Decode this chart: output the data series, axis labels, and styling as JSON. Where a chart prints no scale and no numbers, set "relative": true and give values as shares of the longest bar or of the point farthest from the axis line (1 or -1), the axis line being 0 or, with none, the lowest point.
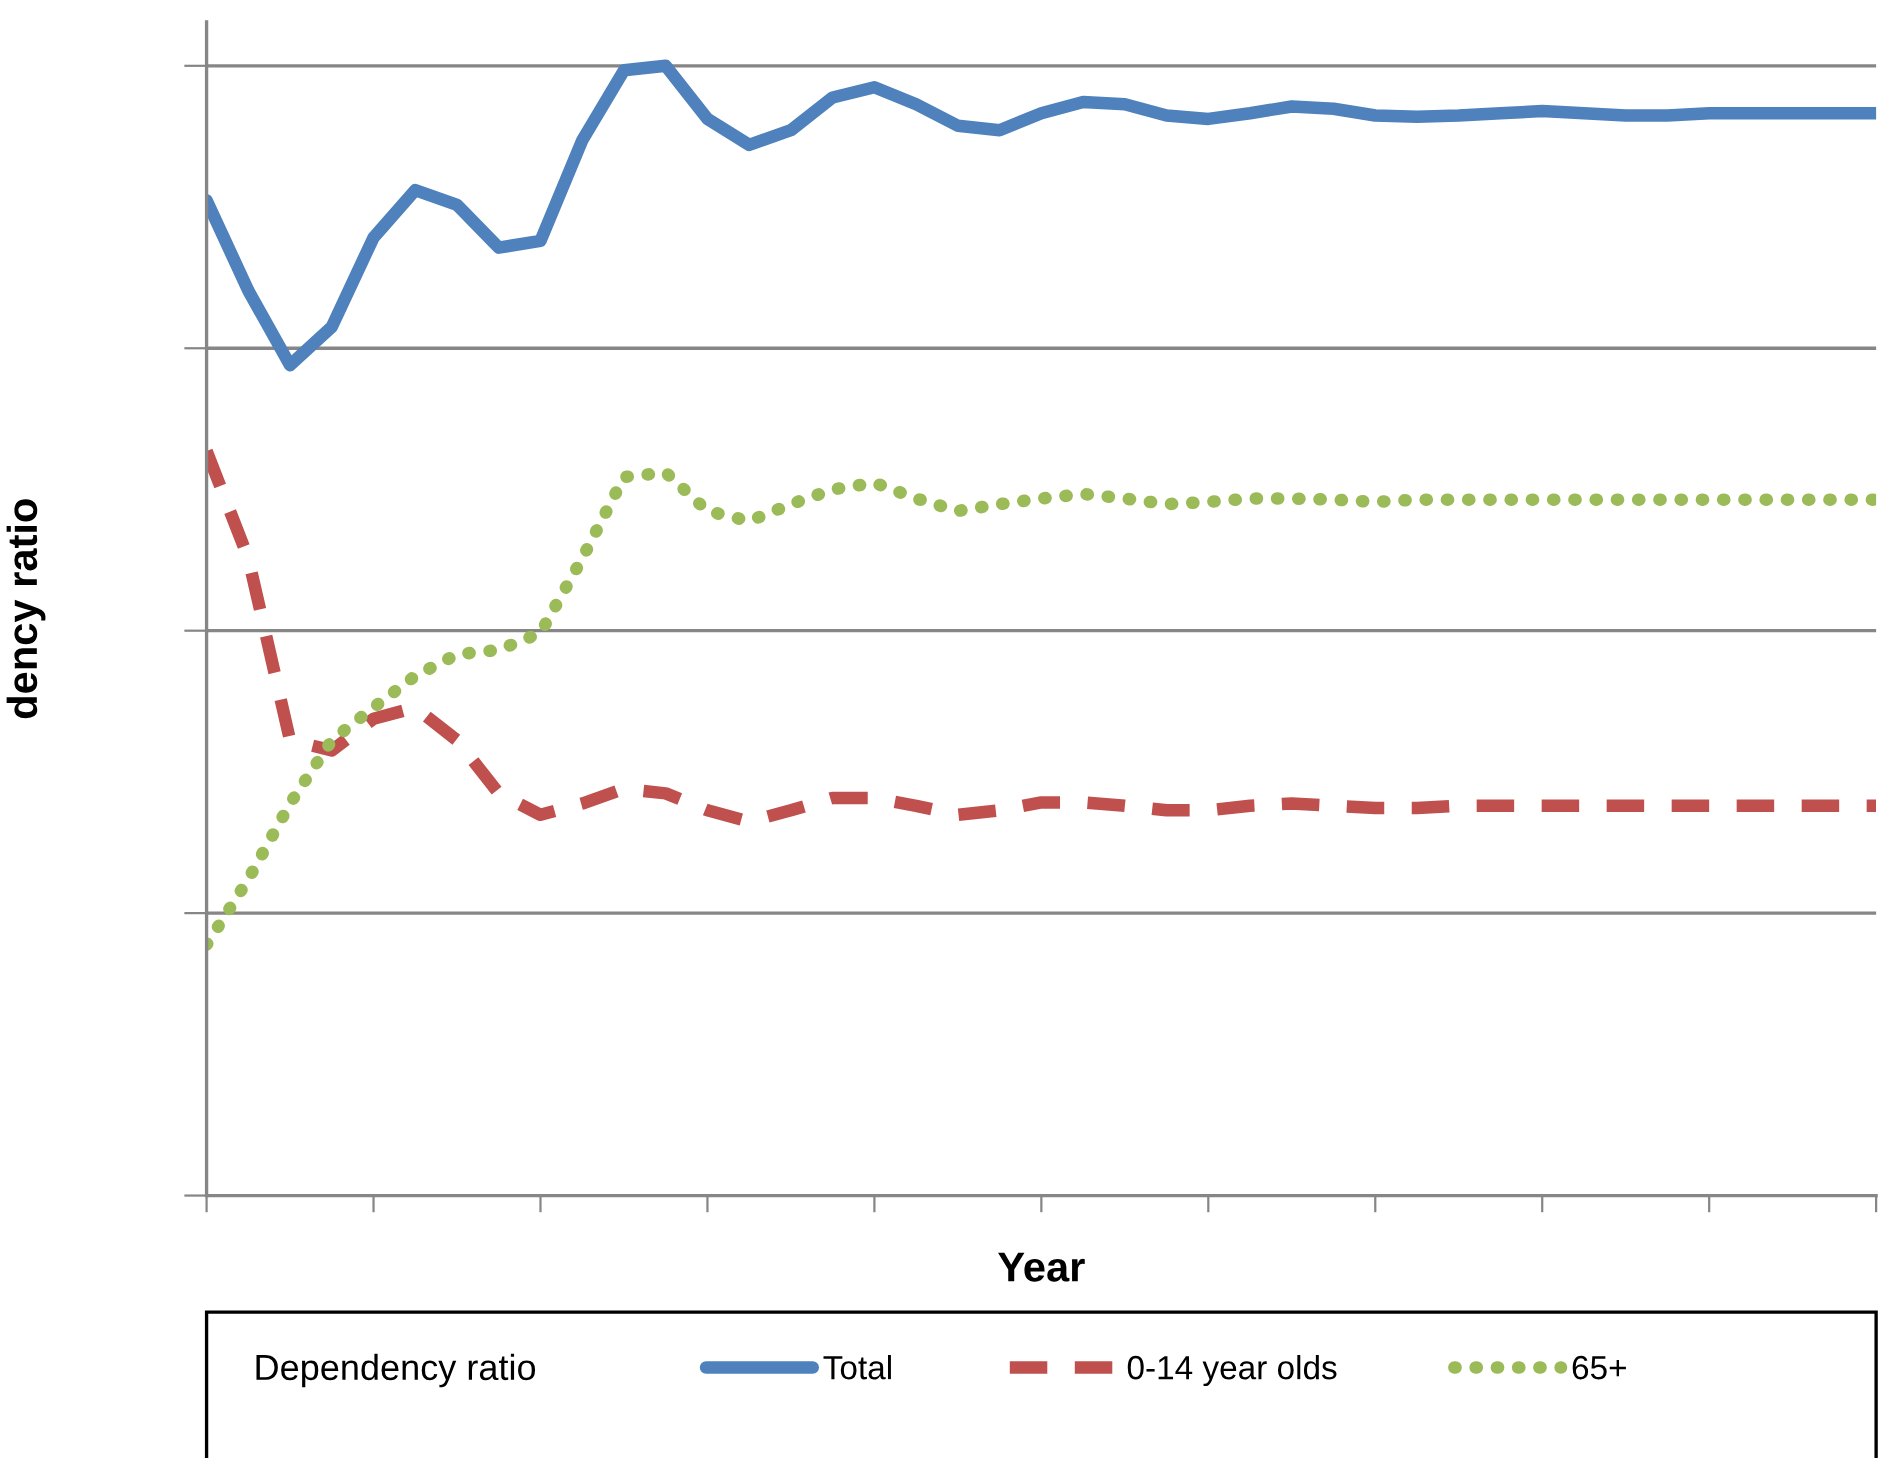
{
  "chart_data": {
    "type": "line",
    "relative": true,
    "xlabel": "Year",
    "ylabel": "dency ratio",
    "legend_title": "Dependency ratio",
    "legend": "bottom",
    "grid": "y",
    "tick_labels": false,
    "categories": [
      null,
      null,
      null,
      null,
      null,
      null,
      null,
      null,
      null,
      null,
      null,
      null,
      null,
      null,
      null,
      null,
      null,
      null,
      null,
      null,
      null,
      null,
      null,
      null,
      null,
      null,
      null,
      null,
      null,
      null,
      null,
      null,
      null,
      null,
      null,
      null,
      null,
      null,
      null,
      null,
      null
    ],
    "series": [
      {
        "name": "Total",
        "color": "#4f81bd",
        "line_style": "solid",
        "values": [
          0.881,
          0.801,
          0.735,
          0.769,
          0.848,
          0.89,
          0.877,
          0.839,
          0.845,
          0.934,
          0.996,
          1,
          0.953,
          0.93,
          0.943,
          0.972,
          0.981,
          0.966,
          0.947,
          0.943,
          0.958,
          0.968,
          0.966,
          0.956,
          0.953,
          0.958,
          0.964,
          0.962,
          0.956,
          0.955,
          0.956,
          0.958,
          0.96,
          0.958,
          0.956,
          0.956,
          0.958,
          0.958,
          0.958,
          0.958,
          0.958
        ]
      },
      {
        "name": "0-14 year olds",
        "color": "#c0504d",
        "line_style": "dashed",
        "values": [
          0.659,
          0.564,
          0.403,
          0.394,
          0.422,
          0.432,
          0.403,
          0.356,
          0.337,
          0.347,
          0.36,
          0.356,
          0.341,
          0.331,
          0.341,
          0.352,
          0.352,
          0.345,
          0.337,
          0.341,
          0.348,
          0.348,
          0.345,
          0.341,
          0.341,
          0.345,
          0.347,
          0.345,
          0.343,
          0.343,
          0.345,
          0.345,
          0.345,
          0.345,
          0.345,
          0.345,
          0.345,
          0.345,
          0.345,
          0.345,
          0.345
        ]
      },
      {
        "name": "65+",
        "color": "#9bbb59",
        "line_style": "dotted",
        "values": [
          0.222,
          0.28,
          0.347,
          0.403,
          0.432,
          0.46,
          0.479,
          0.483,
          0.498,
          0.564,
          0.636,
          0.64,
          0.606,
          0.597,
          0.612,
          0.625,
          0.631,
          0.617,
          0.606,
          0.612,
          0.617,
          0.621,
          0.617,
          0.612,
          0.614,
          0.617,
          0.617,
          0.616,
          0.614,
          0.616,
          0.616,
          0.616,
          0.616,
          0.616,
          0.616,
          0.616,
          0.616,
          0.616,
          0.616,
          0.616,
          0.616
        ]
      }
    ]
  }
}
